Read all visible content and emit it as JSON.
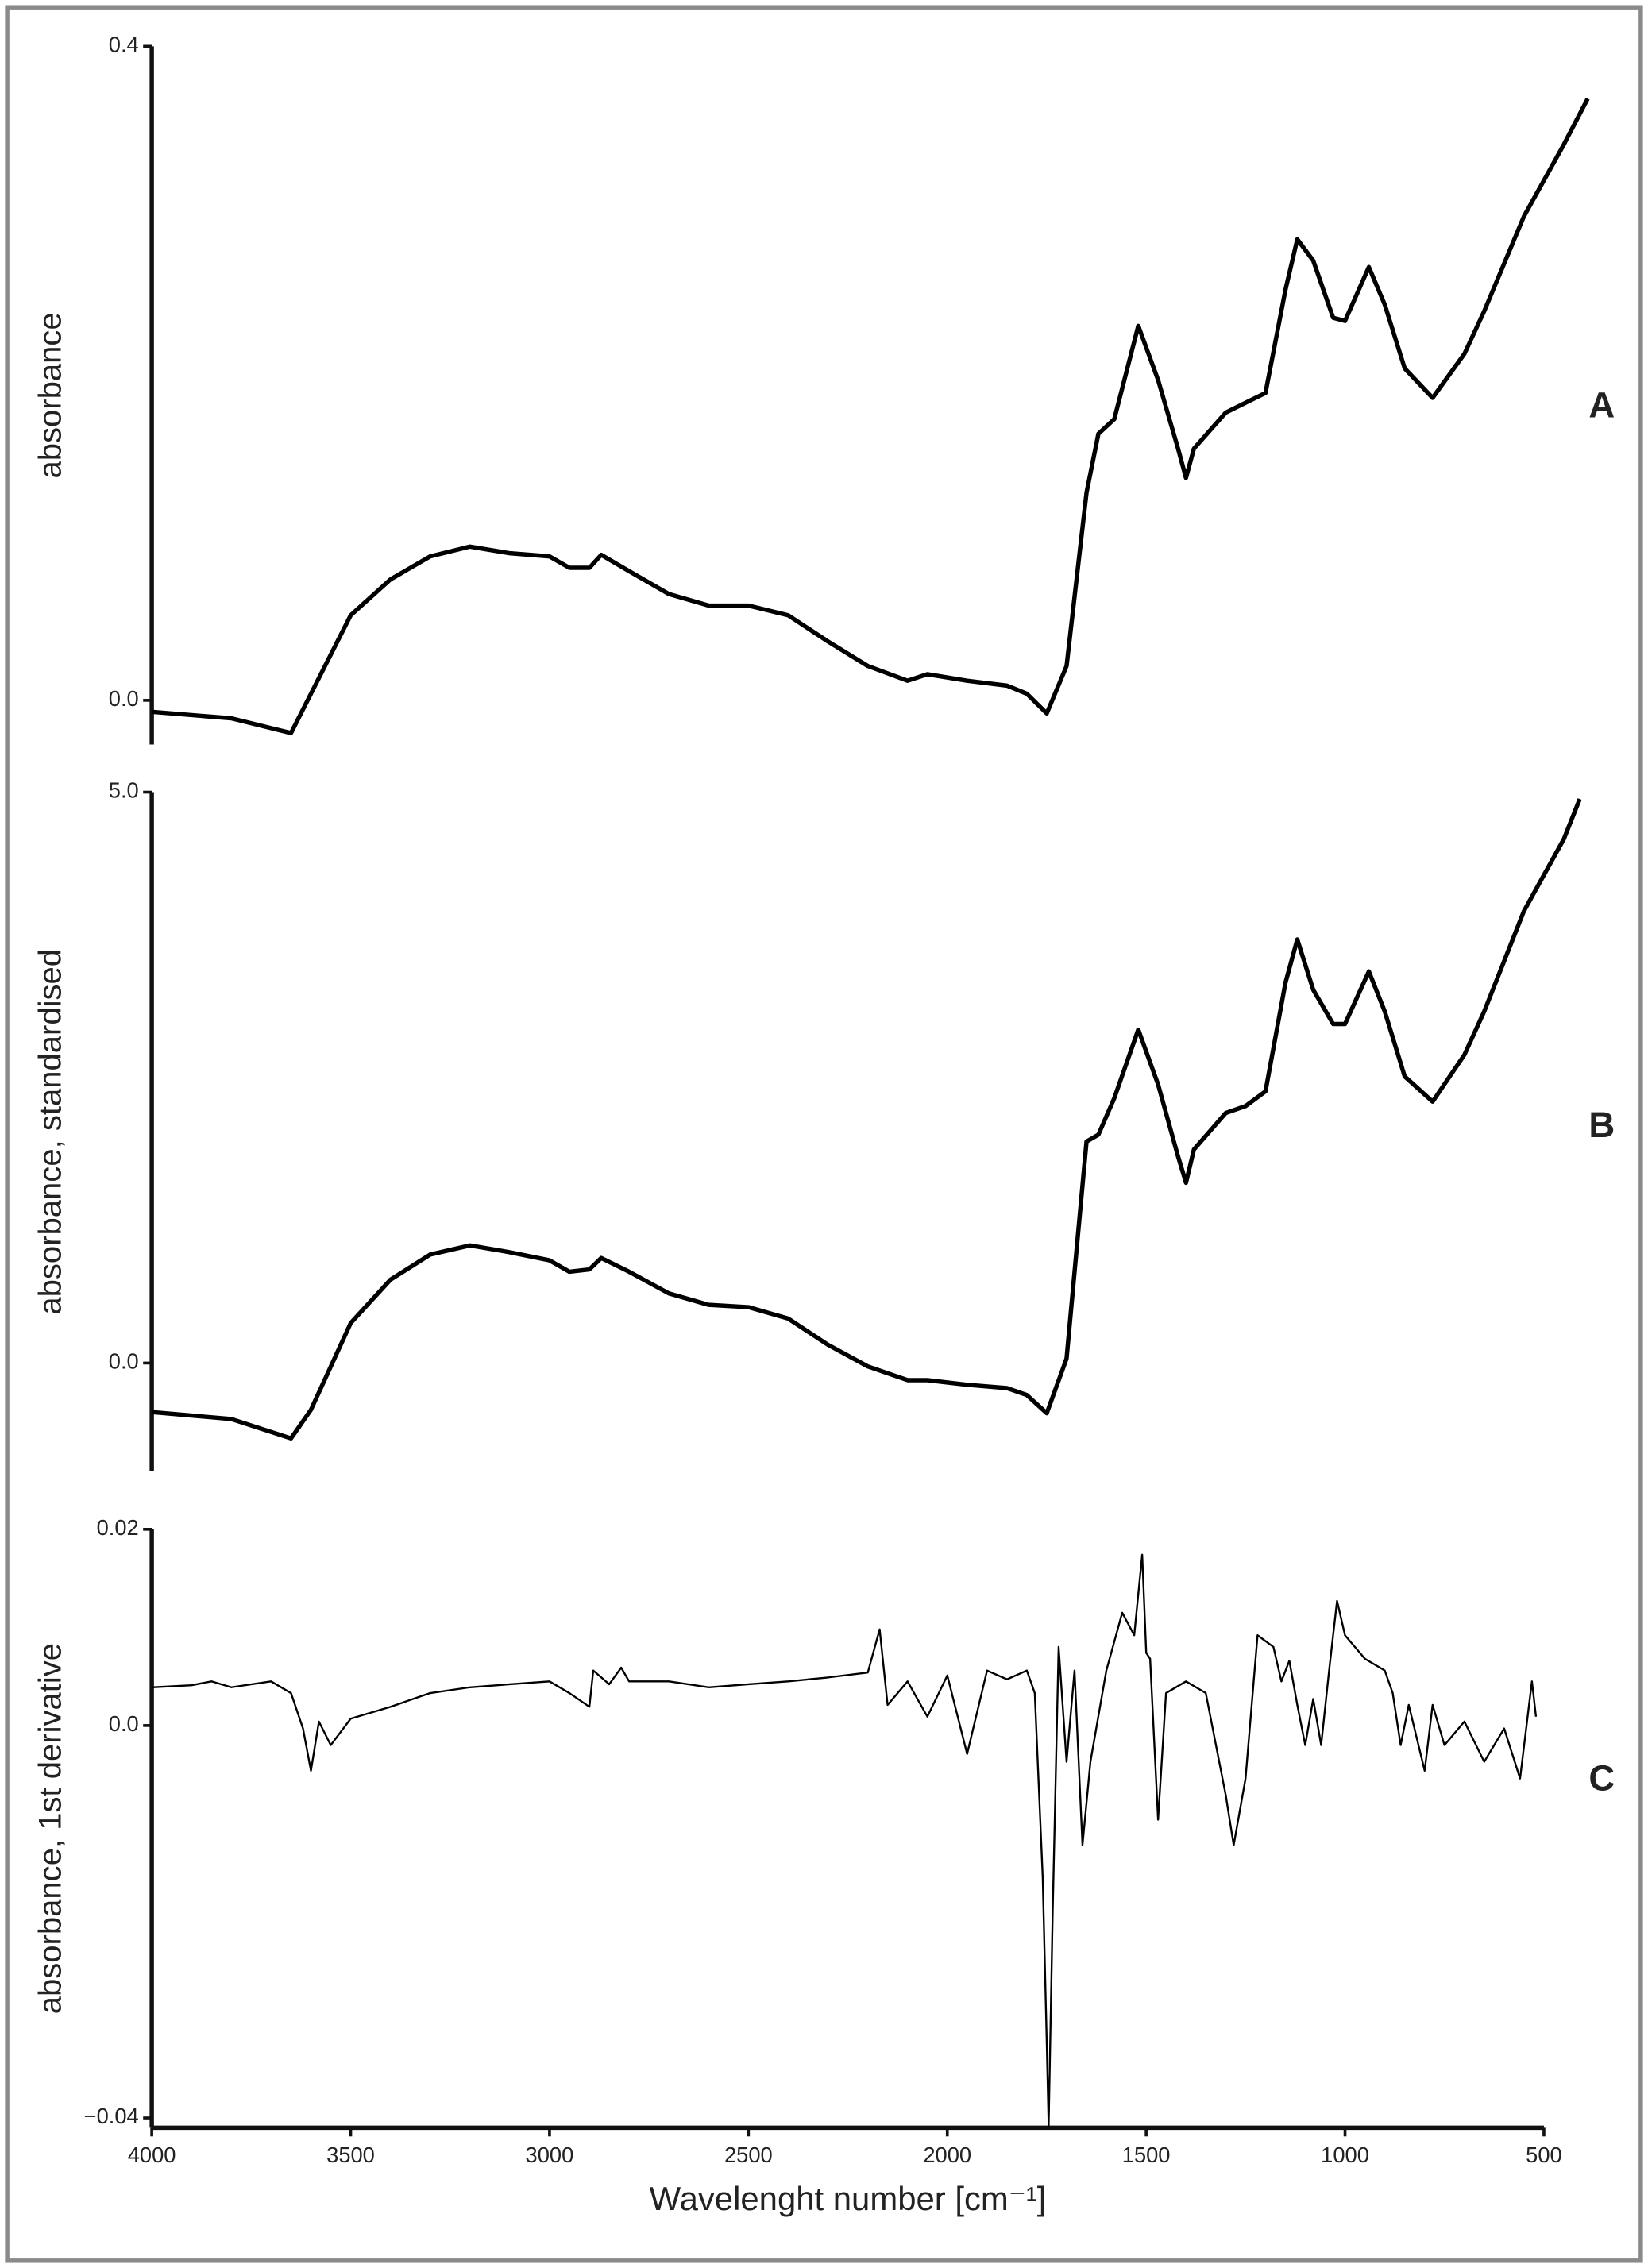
{
  "chart_data": [
    {
      "type": "line",
      "ylabel": "absorbance",
      "panel_label": "A",
      "color": "#000000",
      "xlim": [
        4000,
        500
      ],
      "ylim": [
        -0.027,
        0.4
      ],
      "yticks": [
        {
          "value": 0,
          "label": "0.0"
        },
        {
          "value": 0.4,
          "label": "0.4"
        }
      ],
      "x": [
        4000,
        3800,
        3700,
        3650,
        3600,
        3500,
        3400,
        3300,
        3200,
        3100,
        3000,
        2950,
        2900,
        2870,
        2800,
        2700,
        2600,
        2500,
        2400,
        2300,
        2200,
        2100,
        2050,
        1950,
        1850,
        1800,
        1750,
        1700,
        1650,
        1620,
        1580,
        1520,
        1470,
        1420,
        1400,
        1380,
        1300,
        1250,
        1200,
        1150,
        1120,
        1080,
        1030,
        1000,
        940,
        900,
        850,
        780,
        700,
        650,
        550,
        450,
        390
      ],
      "values": [
        -0.007,
        -0.011,
        -0.017,
        -0.02,
        0.004,
        0.052,
        0.074,
        0.088,
        0.094,
        0.09,
        0.088,
        0.081,
        0.081,
        0.089,
        0.079,
        0.065,
        0.058,
        0.058,
        0.052,
        0.036,
        0.021,
        0.012,
        0.016,
        0.012,
        0.009,
        0.004,
        -0.008,
        0.021,
        0.127,
        0.163,
        0.172,
        0.229,
        0.196,
        0.154,
        0.136,
        0.154,
        0.176,
        0.182,
        0.188,
        0.251,
        0.282,
        0.269,
        0.234,
        0.232,
        0.265,
        0.242,
        0.203,
        0.185,
        0.212,
        0.238,
        0.296,
        0.34,
        0.368
      ]
    },
    {
      "type": "line",
      "ylabel": "absorbance, standardised",
      "panel_label": "B",
      "color": "#000000",
      "xlim": [
        4000,
        500
      ],
      "ylim": [
        -0.95,
        5.0
      ],
      "yticks": [
        {
          "value": 0,
          "label": "0.0"
        },
        {
          "value": 5,
          "label": "5.0"
        }
      ],
      "x": [
        4000,
        3800,
        3650,
        3600,
        3500,
        3400,
        3300,
        3200,
        3100,
        3000,
        2950,
        2900,
        2870,
        2800,
        2700,
        2600,
        2500,
        2400,
        2300,
        2200,
        2100,
        2050,
        1950,
        1850,
        1800,
        1750,
        1700,
        1650,
        1620,
        1580,
        1520,
        1470,
        1420,
        1400,
        1380,
        1300,
        1250,
        1200,
        1150,
        1120,
        1080,
        1030,
        1000,
        940,
        900,
        850,
        780,
        700,
        650,
        550,
        450,
        410
      ],
      "values": [
        -0.43,
        -0.49,
        -0.66,
        -0.41,
        0.35,
        0.73,
        0.95,
        1.03,
        0.97,
        0.9,
        0.8,
        0.82,
        0.92,
        0.8,
        0.61,
        0.51,
        0.49,
        0.39,
        0.16,
        -0.03,
        -0.15,
        -0.15,
        -0.19,
        -0.22,
        -0.28,
        -0.44,
        0.04,
        1.94,
        2.0,
        2.32,
        2.92,
        2.44,
        1.81,
        1.58,
        1.87,
        2.19,
        2.25,
        2.38,
        3.33,
        3.71,
        3.27,
        2.97,
        2.97,
        3.43,
        3.08,
        2.51,
        2.29,
        2.7,
        3.08,
        3.96,
        4.59,
        4.94
      ]
    },
    {
      "type": "line",
      "ylabel": "absorbance, 1st derivative",
      "panel_label": "C",
      "color": "#000000",
      "xlabel": "Wavelenght number [cm⁻¹]",
      "xlim": [
        4000,
        500
      ],
      "ylim": [
        -0.041,
        0.02
      ],
      "xticks": [
        4000,
        3500,
        3000,
        2500,
        2000,
        1500,
        1000,
        500
      ],
      "yticks": [
        {
          "value": -0.04,
          "label": "−0.04"
        },
        {
          "value": 0,
          "label": "0.0"
        },
        0.02
      ],
      "x": [
        4000,
        3900,
        3850,
        3800,
        3700,
        3650,
        3620,
        3600,
        3580,
        3550,
        3500,
        3400,
        3300,
        3200,
        3100,
        3000,
        2950,
        2900,
        2890,
        2850,
        2820,
        2800,
        2700,
        2600,
        2500,
        2400,
        2300,
        2200,
        2170,
        2150,
        2100,
        2050,
        2000,
        1950,
        1900,
        1850,
        1800,
        1780,
        1760,
        1750,
        1745,
        1735,
        1720,
        1700,
        1680,
        1660,
        1640,
        1600,
        1560,
        1530,
        1510,
        1500,
        1490,
        1470,
        1450,
        1400,
        1350,
        1300,
        1280,
        1250,
        1220,
        1180,
        1160,
        1140,
        1120,
        1100,
        1080,
        1060,
        1040,
        1020,
        1000,
        950,
        900,
        880,
        860,
        840,
        800,
        780,
        750,
        700,
        650,
        600,
        560,
        530,
        520
      ],
      "values": [
        0.0039,
        0.0041,
        0.0045,
        0.0039,
        0.0045,
        0.0033,
        -0.0003,
        -0.0046,
        0.0004,
        -0.002,
        0.0007,
        0.0019,
        0.0033,
        0.0039,
        0.0042,
        0.0045,
        0.0033,
        0.0019,
        0.0056,
        0.0042,
        0.0059,
        0.0045,
        0.0045,
        0.0039,
        0.0042,
        0.0045,
        0.0049,
        0.0054,
        0.0098,
        0.0021,
        0.0045,
        0.0009,
        0.0051,
        -0.0029,
        0.0056,
        0.0047,
        0.0056,
        0.0033,
        -0.0155,
        -0.0324,
        -0.0408,
        -0.019,
        0.008,
        -0.0037,
        0.0056,
        -0.0122,
        -0.0037,
        0.0056,
        0.0115,
        0.0092,
        0.0174,
        0.0074,
        0.0068,
        -0.0096,
        0.0033,
        0.0045,
        0.0033,
        -0.0071,
        -0.0122,
        -0.0054,
        0.0092,
        0.008,
        0.0045,
        0.0066,
        0.0021,
        -0.002,
        0.0027,
        -0.002,
        0.0056,
        0.0127,
        0.0092,
        0.0068,
        0.0056,
        0.0033,
        -0.002,
        0.0021,
        -0.0046,
        0.0021,
        -0.002,
        0.0004,
        -0.0037,
        -0.0003,
        -0.0054,
        0.0045,
        0.0009
      ]
    }
  ]
}
